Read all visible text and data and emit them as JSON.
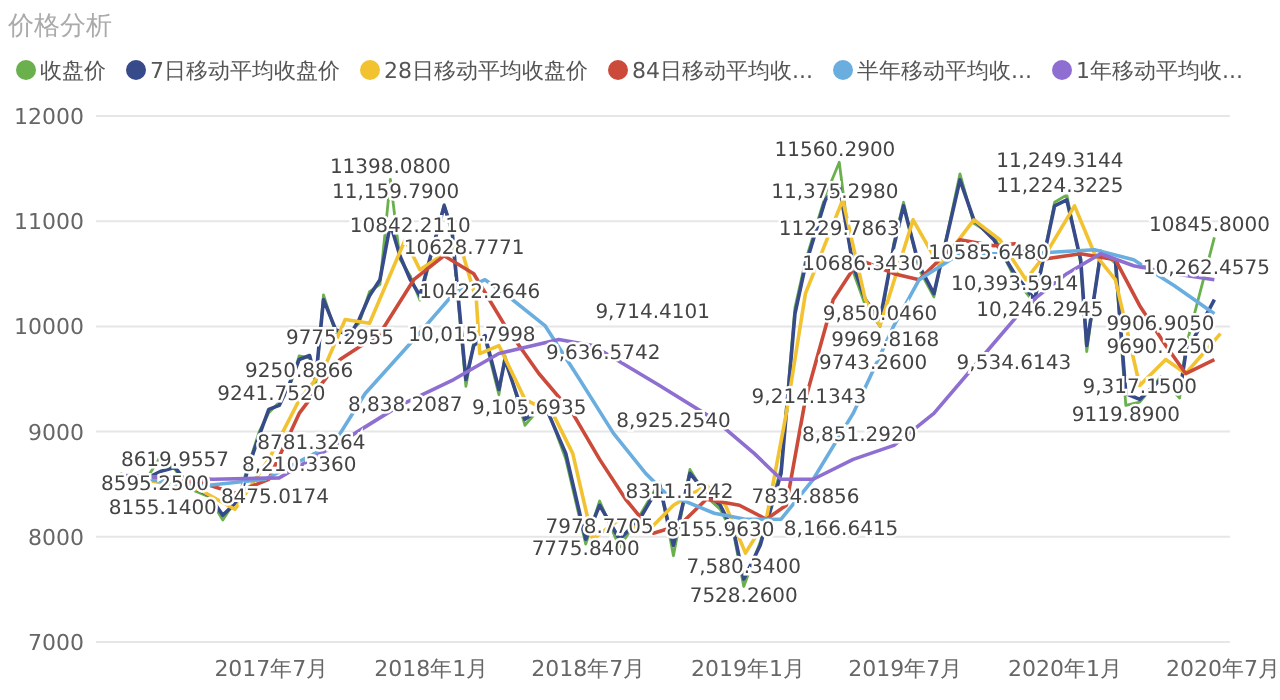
{
  "chart_data": {
    "type": "line",
    "title": "价格分析",
    "legend": "top",
    "grid": "y",
    "xlim": [
      "2016-12-11",
      "2020-07-09"
    ],
    "ylim": [
      7000,
      12000
    ],
    "yticks": [
      7000,
      8000,
      9000,
      10000,
      11000,
      12000
    ],
    "xticks": [
      {
        "value": "2017-07",
        "label": "2017年7月"
      },
      {
        "value": "2018-01",
        "label": "2018年1月"
      },
      {
        "value": "2018-07",
        "label": "2018年7月"
      },
      {
        "value": "2019-01",
        "label": "2019年1月"
      },
      {
        "value": "2019-07",
        "label": "2019年7月"
      },
      {
        "value": "2020-01",
        "label": "2020年1月"
      },
      {
        "value": "2020-07",
        "label": "2020年7月"
      }
    ],
    "series": [
      {
        "name": "收盘价",
        "color": "#6ab04c",
        "x": [
          "2017-01-08",
          "2017-02-05",
          "2017-02-23",
          "2017-03-12",
          "2017-03-28",
          "2017-04-20",
          "2017-05-06",
          "2017-05-25",
          "2017-06-06",
          "2017-06-17",
          "2017-06-28",
          "2017-07-10",
          "2017-07-21",
          "2017-08-02",
          "2017-08-14",
          "2017-08-21",
          "2017-08-30",
          "2017-09-13",
          "2017-09-29",
          "2017-10-10",
          "2017-10-22",
          "2017-11-03",
          "2017-11-15",
          "2017-11-26",
          "2017-12-08",
          "2017-12-19",
          "2018-01-16",
          "2018-01-25",
          "2018-02-10",
          "2018-02-19",
          "2018-03-04",
          "2018-03-20",
          "2018-03-27",
          "2018-04-19",
          "2018-05-12",
          "2018-06-05",
          "2018-06-28",
          "2018-07-14",
          "2018-08-06",
          "2018-08-29",
          "2018-09-21",
          "2018-10-07",
          "2018-10-26",
          "2018-11-14",
          "2018-11-30",
          "2018-12-16",
          "2018-12-27",
          "2019-01-15",
          "2019-02-08",
          "2019-02-24",
          "2019-03-08",
          "2019-03-31",
          "2019-04-16",
          "2019-05-02",
          "2019-05-16",
          "2019-06-02",
          "2019-06-18",
          "2019-06-29",
          "2019-07-17",
          "2019-08-03",
          "2019-09-02",
          "2019-09-18",
          "2019-10-11",
          "2019-11-04",
          "2019-11-27",
          "2019-12-20",
          "2020-01-03",
          "2020-01-19",
          "2020-01-26",
          "2020-02-11",
          "2020-02-28",
          "2020-03-11",
          "2020-03-27",
          "2020-04-20",
          "2020-05-12",
          "2020-05-19",
          "2020-06-21"
        ],
        "values": [
          8600,
          8520,
          8760,
          8640,
          8460,
          8380,
          8160,
          8400,
          8720,
          9000,
          9180,
          9280,
          9400,
          9720,
          9700,
          9450,
          10300,
          9940,
          9950,
          10030,
          10330,
          10400,
          11398,
          10640,
          10480,
          10250,
          11160,
          10880,
          9430,
          9850,
          9880,
          9350,
          9720,
          9060,
          9280,
          8740,
          7930,
          8340,
          7900,
          8200,
          8520,
          7820,
          8640,
          8380,
          8260,
          8000,
          7528,
          7950,
          8650,
          10180,
          10620,
          11240,
          11560,
          10520,
          10200,
          10000,
          10800,
          11180,
          10540,
          10280,
          11450,
          10980,
          10860,
          10460,
          10220,
          11180,
          11250,
          10600,
          9760,
          10720,
          10600,
          9250,
          9280,
          9520,
          9320,
          9800,
          10846
        ]
      },
      {
        "name": "7日移动平均收盘价",
        "color": "#374a89",
        "x": [
          "2017-01-08",
          "2017-02-05",
          "2017-02-23",
          "2017-03-12",
          "2017-03-28",
          "2017-04-20",
          "2017-05-06",
          "2017-05-25",
          "2017-06-06",
          "2017-06-17",
          "2017-06-28",
          "2017-07-10",
          "2017-07-21",
          "2017-08-02",
          "2017-08-14",
          "2017-08-21",
          "2017-08-30",
          "2017-09-13",
          "2017-09-29",
          "2017-10-10",
          "2017-10-22",
          "2017-11-03",
          "2017-11-15",
          "2017-11-26",
          "2017-12-08",
          "2017-12-19",
          "2018-01-16",
          "2018-01-25",
          "2018-02-10",
          "2018-02-19",
          "2018-03-04",
          "2018-03-20",
          "2018-03-27",
          "2018-04-19",
          "2018-05-12",
          "2018-06-05",
          "2018-06-28",
          "2018-07-14",
          "2018-08-06",
          "2018-08-29",
          "2018-09-21",
          "2018-10-07",
          "2018-10-26",
          "2018-11-14",
          "2018-11-30",
          "2018-12-16",
          "2018-12-27",
          "2019-01-15",
          "2019-02-08",
          "2019-02-24",
          "2019-03-08",
          "2019-03-31",
          "2019-04-16",
          "2019-05-02",
          "2019-05-16",
          "2019-06-02",
          "2019-06-18",
          "2019-06-29",
          "2019-07-17",
          "2019-08-03",
          "2019-09-02",
          "2019-09-18",
          "2019-10-11",
          "2019-11-04",
          "2019-11-27",
          "2019-12-20",
          "2020-01-03",
          "2020-01-19",
          "2020-01-26",
          "2020-02-11",
          "2020-02-28",
          "2020-03-11",
          "2020-03-27",
          "2020-04-20",
          "2020-05-12",
          "2020-05-19",
          "2020-06-21"
        ],
        "values": [
          8584,
          8547,
          8620,
          8660,
          8490,
          8395,
          8205,
          8357,
          8698,
          8964,
          9211,
          9249,
          9438,
          9685,
          9723,
          9495,
          10254,
          9970,
          9913,
          10065,
          10292,
          10444,
          10975,
          10672,
          10444,
          10292,
          11146,
          10918,
          9495,
          9818,
          9913,
          9400,
          9685,
          9116,
          9249,
          8793,
          7977,
          8300,
          7977,
          8167,
          8490,
          7920,
          8603,
          8414,
          8300,
          8034,
          7598,
          7920,
          8603,
          10121,
          10577,
          11203,
          11336,
          10577,
          10254,
          10065,
          10767,
          11146,
          10577,
          10311,
          11393,
          11013,
          10824,
          10501,
          10254,
          11146,
          11203,
          10634,
          9818,
          10691,
          10634,
          9362,
          9306,
          9495,
          9362,
          9742,
          10254
        ]
      },
      {
        "name": "28日移动平均收盘价",
        "color": "#f2c231",
        "x": [
          "2017-01-08",
          "2017-04-09",
          "2017-05-20",
          "2017-06-28",
          "2017-08-02",
          "2017-08-30",
          "2017-09-24",
          "2017-10-22",
          "2017-12-02",
          "2017-12-19",
          "2018-02-03",
          "2018-02-22",
          "2018-02-26",
          "2018-03-20",
          "2018-04-19",
          "2018-05-21",
          "2018-06-13",
          "2018-07-06",
          "2018-08-06",
          "2018-09-05",
          "2018-10-07",
          "2018-11-14",
          "2018-12-06",
          "2018-12-29",
          "2019-01-22",
          "2019-02-14",
          "2019-03-08",
          "2019-04-20",
          "2019-05-16",
          "2019-06-02",
          "2019-07-10",
          "2019-08-09",
          "2019-09-18",
          "2019-10-18",
          "2019-11-17",
          "2019-12-10",
          "2020-01-12",
          "2020-02-04",
          "2020-02-28",
          "2020-03-27",
          "2020-04-26",
          "2020-05-19",
          "2020-06-28"
        ],
        "values": [
          8584,
          8450,
          8262,
          8736,
          9300,
          9590,
          10065,
          10030,
          10824,
          10539,
          10786,
          10254,
          9742,
          9818,
          9306,
          9173,
          8793,
          7977,
          8167,
          8034,
          8300,
          8490,
          8300,
          7845,
          8167,
          9173,
          10311,
          11203,
          10254,
          10008,
          11013,
          10577,
          11013,
          10824,
          10444,
          10690,
          11146,
          10691,
          10444,
          9438,
          9685,
          9552,
          9932
        ]
      },
      {
        "name": "84日移动平均收...",
        "color": "#cc4a3a",
        "x": [
          "2017-01-08",
          "2017-04-09",
          "2017-05-20",
          "2017-06-28",
          "2017-08-02",
          "2017-09-18",
          "2017-11-03",
          "2017-12-12",
          "2018-01-16",
          "2018-02-19",
          "2018-03-27",
          "2018-05-05",
          "2018-06-13",
          "2018-07-14",
          "2018-08-13",
          "2018-09-14",
          "2018-10-14",
          "2018-11-14",
          "2018-12-22",
          "2019-01-22",
          "2019-02-14",
          "2019-03-08",
          "2019-04-09",
          "2019-05-09",
          "2019-06-18",
          "2019-07-17",
          "2019-09-02",
          "2019-10-11",
          "2019-11-04",
          "2019-12-03",
          "2020-01-19",
          "2020-02-28",
          "2020-03-27",
          "2020-04-26",
          "2020-05-19",
          "2020-06-21"
        ],
        "values": [
          8580,
          8520,
          8414,
          8547,
          9173,
          9685,
          9932,
          10444,
          10672,
          10501,
          10008,
          9552,
          9173,
          8736,
          8357,
          8034,
          8110,
          8357,
          8300,
          8167,
          8300,
          9306,
          10254,
          10634,
          10501,
          10444,
          10824,
          10767,
          10786,
          10634,
          10691,
          10634,
          10197,
          9818,
          9552,
          9685
        ]
      },
      {
        "name": "半年移动平均收...",
        "color": "#6aaee0",
        "x": [
          "2017-01-08",
          "2017-04-09",
          "2017-06-24",
          "2017-09-11",
          "2017-10-17",
          "2017-12-12",
          "2018-01-27",
          "2018-03-04",
          "2018-03-27",
          "2018-05-12",
          "2018-06-21",
          "2018-07-30",
          "2018-09-05",
          "2018-09-28",
          "2018-11-23",
          "2018-12-29",
          "2019-02-08",
          "2019-03-17",
          "2019-05-02",
          "2019-06-18",
          "2019-07-17",
          "2019-09-02",
          "2019-11-17",
          "2020-02-04",
          "2020-03-20",
          "2020-05-06",
          "2020-06-21"
        ],
        "values": [
          8580,
          8480,
          8547,
          8888,
          9362,
          9875,
          10311,
          10444,
          10311,
          10008,
          9495,
          8983,
          8603,
          8414,
          8224,
          8167,
          8167,
          8547,
          9173,
          10008,
          10444,
          10691,
          10691,
          10729,
          10634,
          10387,
          10121
        ]
      },
      {
        "name": "1年移动平均收...",
        "color": "#8e6fd1",
        "x": [
          "2017-01-08",
          "2017-04-25",
          "2017-07-10",
          "2017-09-24",
          "2017-11-26",
          "2018-01-27",
          "2018-03-20",
          "2018-05-28",
          "2018-07-06",
          "2018-09-21",
          "2018-11-23",
          "2019-01-08",
          "2019-02-08",
          "2019-03-17",
          "2019-05-02",
          "2019-06-18",
          "2019-08-03",
          "2019-09-25",
          "2019-11-17",
          "2020-01-03",
          "2020-02-11",
          "2020-03-20",
          "2020-05-06",
          "2020-06-21"
        ],
        "values": [
          8584,
          8547,
          8560,
          8926,
          9249,
          9495,
          9742,
          9875,
          9818,
          9438,
          9116,
          8793,
          8547,
          8547,
          8736,
          8869,
          9173,
          9685,
          10197,
          10501,
          10691,
          10577,
          10501,
          10444
        ]
      }
    ],
    "annotations": [
      {
        "text": "8619.9557",
        "x": "2017-03-12",
        "y": 8619.9557
      },
      {
        "text": "8595.2500",
        "x": "2017-02-17",
        "y": 8595.25
      },
      {
        "text": "8475.0174",
        "x": "2017-04-27",
        "y": 8475.0174
      },
      {
        "text": "8155.1400",
        "x": "2017-05-06",
        "y": 8155.14
      },
      {
        "text": "8,210.3360",
        "x": "2017-05-25",
        "y": 8357
      },
      {
        "text": "8781.3264",
        "x": "2017-06-08",
        "y": 8781.3264
      },
      {
        "text": "9241.7520",
        "x": "2017-07-01",
        "y": 9241.752
      },
      {
        "text": "9250.8866",
        "x": "2017-08-02",
        "y": 9250.8866
      },
      {
        "text": "9775.2955",
        "x": "2017-09-18",
        "y": 9775.2955
      },
      {
        "text": "8,838.2087",
        "x": "2017-09-24",
        "y": 8926
      },
      {
        "text": "11398.0800",
        "x": "2017-11-15",
        "y": 11398.08
      },
      {
        "text": "11,159.7900",
        "x": "2017-11-21",
        "y": 11159.79
      },
      {
        "text": "10842.2110",
        "x": "2017-12-08",
        "y": 10842.211
      },
      {
        "text": "10628.7771",
        "x": "2018-02-08",
        "y": 10628.7771
      },
      {
        "text": "10422.2646",
        "x": "2018-02-26",
        "y": 10422.2646
      },
      {
        "text": "10,015.7998",
        "x": "2018-02-17",
        "y": 10015.7998
      },
      {
        "text": "9,636.5742",
        "x": "2018-05-10",
        "y": 9636.5742
      },
      {
        "text": "9,714.4101",
        "x": "2018-07-06",
        "y": 9818
      },
      {
        "text": "9,105.6935",
        "x": "2018-04-24",
        "y": 9105.6935
      },
      {
        "text": "8,925.2540",
        "x": "2018-07-30",
        "y": 8983
      },
      {
        "text": "7978.7705",
        "x": "2018-07-14",
        "y": 7978.7705
      },
      {
        "text": "7775.8400",
        "x": "2018-06-28",
        "y": 7977
      },
      {
        "text": "8311.1242",
        "x": "2018-10-14",
        "y": 8311.1242
      },
      {
        "text": "8155.9630",
        "x": "2018-11-30",
        "y": 8155.963
      },
      {
        "text": "7,580.3400",
        "x": "2018-12-27",
        "y": 7598
      },
      {
        "text": "7834.8856",
        "x": "2018-12-29",
        "y": 7845
      },
      {
        "text": "7528.2600",
        "x": "2018-12-27",
        "y": 7528
      },
      {
        "text": "11560.2900",
        "x": "2019-04-11",
        "y": 11560.29
      },
      {
        "text": "11,375.2980",
        "x": "2019-04-11",
        "y": 11375.298
      },
      {
        "text": "11229.7863",
        "x": "2019-04-16",
        "y": 11229.7863
      },
      {
        "text": "10686.3430",
        "x": "2019-05-13",
        "y": 10686.343
      },
      {
        "text": "9,850.0460",
        "x": "2019-06-02",
        "y": 10008
      },
      {
        "text": "9969.8168",
        "x": "2019-06-08",
        "y": 9969.8168
      },
      {
        "text": "9743.2600",
        "x": "2019-05-25",
        "y": 9743.26
      },
      {
        "text": "9,214.1343",
        "x": "2019-03-12",
        "y": 9214.1343
      },
      {
        "text": "8,851.2920",
        "x": "2019-05-09",
        "y": 8851.292
      },
      {
        "text": "8,166.6415",
        "x": "2019-02-08",
        "y": 8167
      },
      {
        "text": "9,534.6143",
        "x": "2019-08-26",
        "y": 9534.6143
      },
      {
        "text": "10585.6480",
        "x": "2019-07-28",
        "y": 10585.648
      },
      {
        "text": "10,393.5914",
        "x": "2019-11-04",
        "y": 10501
      },
      {
        "text": "11,224.3225",
        "x": "2019-12-26",
        "y": 11224.3225
      },
      {
        "text": "11,249.3144",
        "x": "2019-12-26",
        "y": 11249.3144
      },
      {
        "text": "10,246.2945",
        "x": "2019-12-03",
        "y": 10246.2945
      },
      {
        "text": "10845.8000",
        "x": "2020-06-21",
        "y": 10846
      },
      {
        "text": "10,262.4575",
        "x": "2020-06-21",
        "y": 10444
      },
      {
        "text": "9906.9050",
        "x": "2020-04-20",
        "y": 9906.905
      },
      {
        "text": "9690.7250",
        "x": "2020-04-20",
        "y": 9690.725
      },
      {
        "text": "9,317.1500",
        "x": "2020-03-27",
        "y": 9306
      },
      {
        "text": "9119.8900",
        "x": "2020-03-11",
        "y": 9250
      }
    ]
  }
}
